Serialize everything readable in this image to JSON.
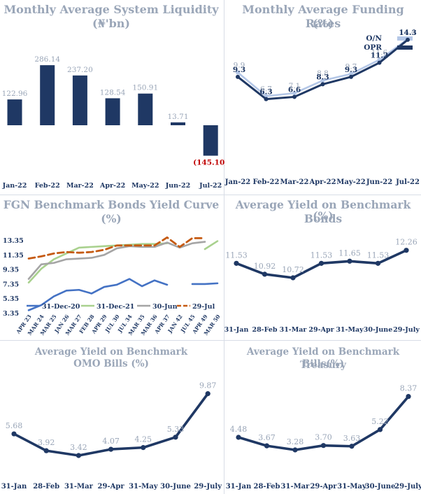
{
  "chart_data": [
    {
      "id": "liquidity",
      "type": "bar",
      "title": "Monthly Average System Liquidity",
      "subtitle": "(₦'bn)",
      "categories": [
        "Jan-22",
        "Feb-22",
        "Mar-22",
        "Apr-22",
        "May-22",
        "Jun-22",
        "Jul-22"
      ],
      "values": [
        122.96,
        286.14,
        237.2,
        128.54,
        150.91,
        13.71,
        -145.1
      ],
      "value_labels": [
        "122.96",
        "286.14",
        "237.20",
        "128.54",
        "150.91",
        "13.71",
        "(145.10)"
      ],
      "colors": {
        "bar": "#1f3864",
        "label": "#9aa6b8",
        "negative_label": "#c00000"
      }
    },
    {
      "id": "funding",
      "type": "line",
      "title": "Monthly Average Funding Rates",
      "subtitle": "(%)",
      "categories": [
        "Jan-22",
        "Feb-22",
        "Mar-22",
        "Apr-22",
        "May-22",
        "Jun-22",
        "Jul-22"
      ],
      "series": [
        {
          "name": "O/N",
          "values": [
            9.9,
            6.7,
            7.1,
            8.8,
            9.7,
            11.6,
            14.4
          ],
          "color": "#b4c7e7"
        },
        {
          "name": "OPR",
          "values": [
            9.3,
            6.3,
            6.6,
            8.3,
            9.3,
            11.2,
            14.3
          ],
          "color": "#1f3864"
        }
      ],
      "legend": "top-right"
    },
    {
      "id": "yieldcurve",
      "type": "line",
      "title": "FGN Benchmark Bonds Yield Curve (%)",
      "categories": [
        "APR 23",
        "MAR 24",
        "MAR 25",
        "JAN 26",
        "MAR 27",
        "FEB 28",
        "APR 29",
        "JUL 30",
        "JUL 34",
        "MAR 35",
        "MAR 36",
        "APR 37",
        "JAN 42",
        "JUL 45",
        "APR 49",
        "MAR 50"
      ],
      "y_ticks": [
        "3.35",
        "5.35",
        "7.35",
        "9.35",
        "11.35",
        "13.35"
      ],
      "ylim": [
        3.35,
        13.35
      ],
      "series": [
        {
          "name": "31-Dec-20",
          "color": "#4472c4",
          "dash": "solid",
          "values": [
            3.7,
            4.4,
            5.6,
            6.4,
            6.5,
            6.0,
            6.9,
            7.2,
            8.0,
            7.0,
            7.8,
            7.2,
            null,
            7.3,
            7.3,
            7.4
          ]
        },
        {
          "name": "31-Dec-21",
          "color": "#a9d18e",
          "dash": "solid",
          "values": [
            7.5,
            9.4,
            10.7,
            11.5,
            12.3,
            12.4,
            12.5,
            12.6,
            12.7,
            12.8,
            12.8,
            12.9,
            null,
            null,
            12.1,
            13.2
          ]
        },
        {
          "name": "30-Jun",
          "color": "#a5a5a5",
          "dash": "solid",
          "values": [
            8.0,
            10.0,
            10.2,
            10.7,
            10.8,
            10.9,
            11.3,
            12.2,
            12.5,
            12.4,
            12.4,
            13.0,
            12.3,
            12.9,
            13.1,
            null
          ]
        },
        {
          "name": "29-Jul",
          "color": "#c55a11",
          "dash": "dashed",
          "values": [
            10.8,
            11.1,
            11.5,
            11.7,
            11.6,
            11.7,
            12.0,
            12.6,
            12.6,
            12.6,
            12.6,
            13.7,
            12.4,
            13.6,
            13.6,
            null
          ]
        }
      ],
      "legend": "bottom"
    },
    {
      "id": "bonds",
      "type": "line",
      "title": "Average Yield on Benchmark Bonds",
      "subtitle": "(%)",
      "categories": [
        "31-Jan",
        "28-Feb",
        "31-Mar",
        "29-Apr",
        "31-May",
        "30-June",
        "29-July"
      ],
      "series": [
        {
          "values": [
            11.53,
            10.92,
            10.72,
            11.53,
            11.65,
            11.53,
            12.26
          ],
          "color": "#1f3864"
        }
      ]
    },
    {
      "id": "omo",
      "type": "line",
      "title": "Average Yield on Benchmark",
      "subtitle": "OMO Bills (%)",
      "categories": [
        "31-Jan",
        "28-Feb",
        "31-Mar",
        "29-Apr",
        "31-May",
        "30-June",
        "29-July"
      ],
      "series": [
        {
          "values": [
            5.68,
            3.92,
            3.42,
            4.07,
            4.25,
            5.33,
            9.87
          ],
          "color": "#1f3864"
        }
      ]
    },
    {
      "id": "treasury",
      "type": "line",
      "title": "Average Yield on Benchmark Treasury",
      "subtitle": "Bills(%)",
      "categories": [
        "31-Jan",
        "28-Feb",
        "31-Mar",
        "29-Apr",
        "31-May",
        "30-June",
        "29-July"
      ],
      "series": [
        {
          "values": [
            4.48,
            3.67,
            3.28,
            3.7,
            3.63,
            5.22,
            8.37
          ],
          "color": "#1f3864"
        }
      ]
    }
  ]
}
